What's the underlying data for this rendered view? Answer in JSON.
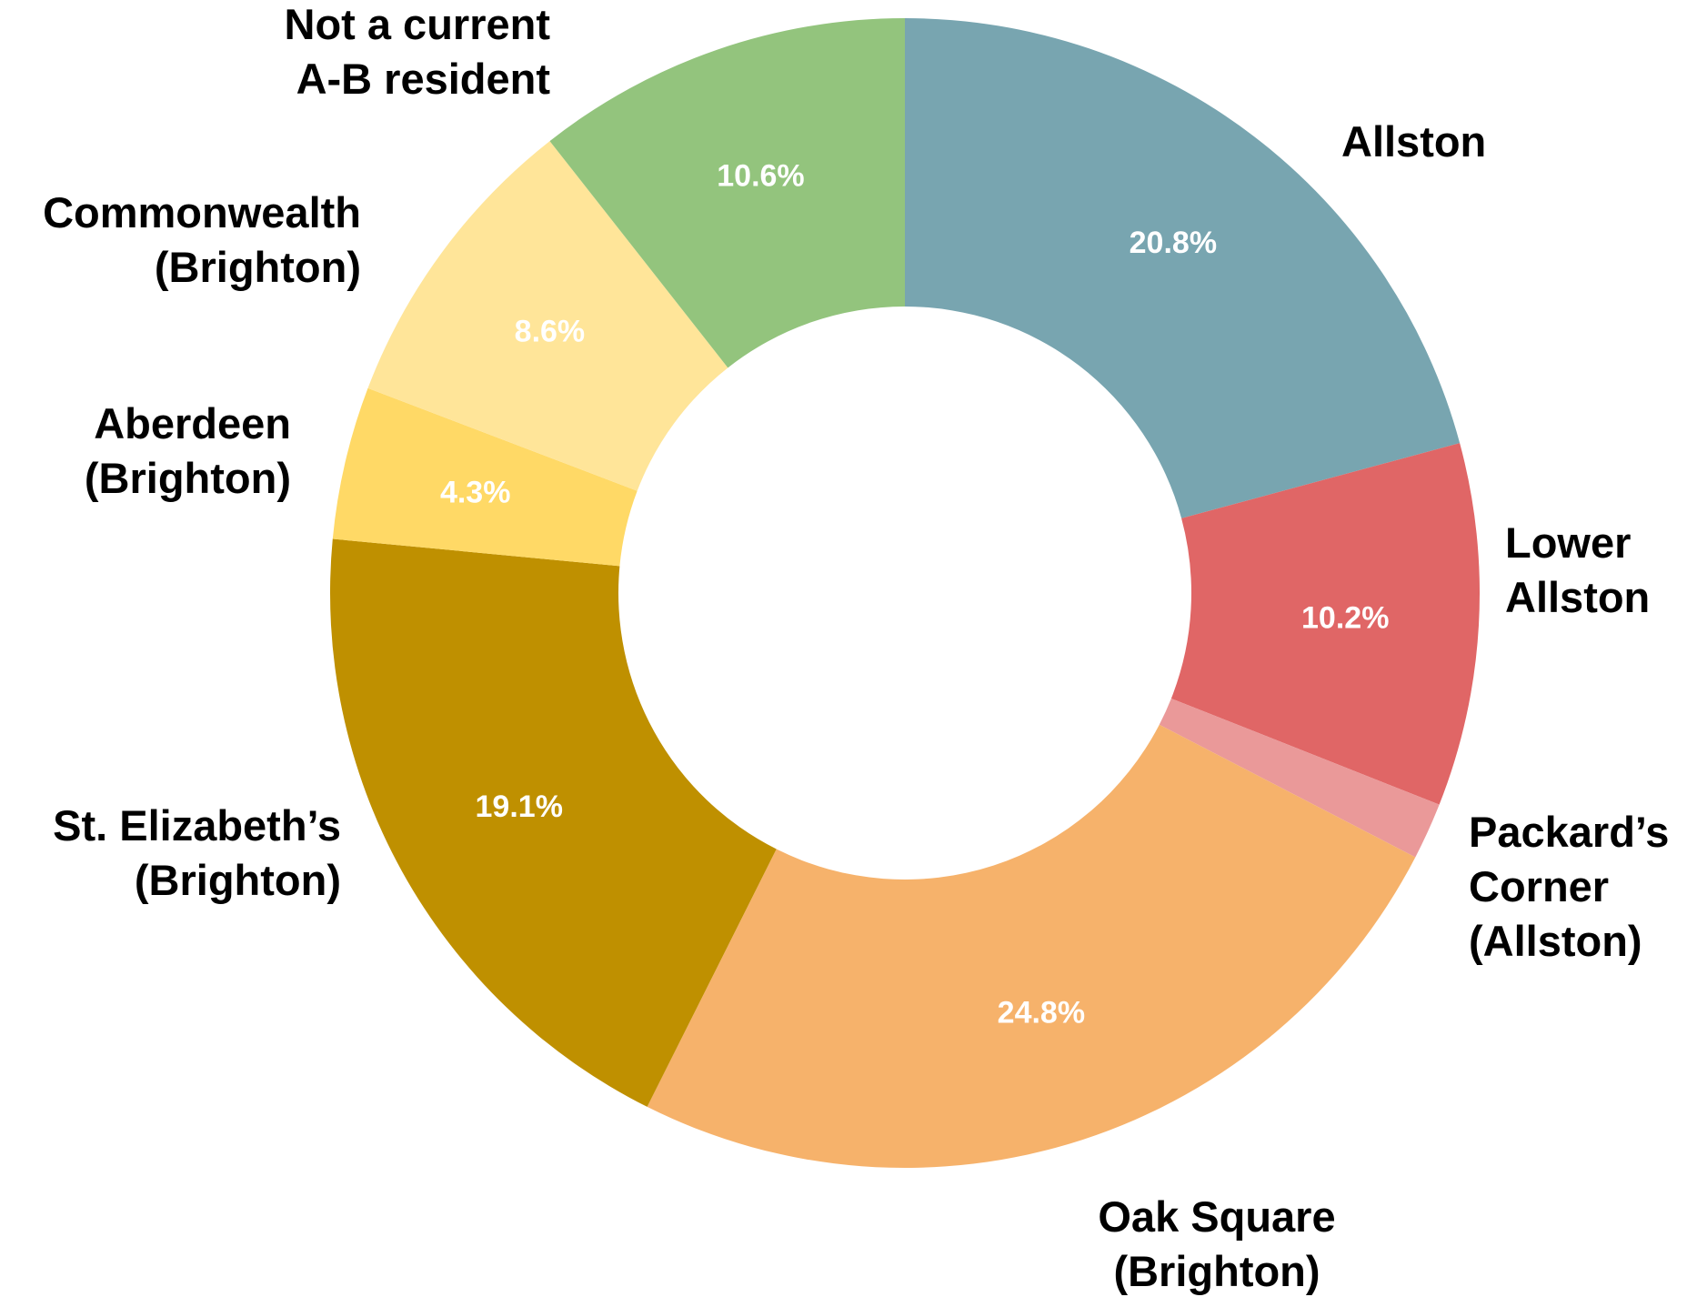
{
  "chart_data": {
    "type": "pie",
    "donut": true,
    "title": "",
    "data_label_color": "#ffffff",
    "slices": [
      {
        "label": "Allston",
        "value": 20.8,
        "value_label": "20.8%",
        "color": "#78a5b0"
      },
      {
        "label": "Lower Allston",
        "value": 10.2,
        "value_label": "10.2%",
        "color": "#e06666"
      },
      {
        "label": "Packard’s Corner (Allston)",
        "value": 1.6,
        "value_label": "",
        "color": "#ea9999"
      },
      {
        "label": "Oak Square (Brighton)",
        "value": 24.8,
        "value_label": "24.8%",
        "color": "#f6b26b"
      },
      {
        "label": "St. Elizabeth’s (Brighton)",
        "value": 19.1,
        "value_label": "19.1%",
        "color": "#bf9000"
      },
      {
        "label": "Aberdeen (Brighton)",
        "value": 4.3,
        "value_label": "4.3%",
        "color": "#ffd966"
      },
      {
        "label": "Commonwealth (Brighton)",
        "value": 8.6,
        "value_label": "8.6%",
        "color": "#ffe599"
      },
      {
        "label": "Not a current A-B resident",
        "value": 10.6,
        "value_label": "10.6%",
        "color": "#93c47d"
      }
    ],
    "category_label_lines": [
      [
        "Allston"
      ],
      [
        "Lower",
        "Allston"
      ],
      [
        "Packard’s",
        "Corner",
        "(Allston)"
      ],
      [
        "Oak Square",
        "(Brighton)"
      ],
      [
        "St. Elizabeth’s",
        "(Brighton)"
      ],
      [
        "Aberdeen",
        "(Brighton)"
      ],
      [
        "Commonwealth",
        "(Brighton)"
      ],
      [
        "Not a current",
        "A-B resident"
      ]
    ]
  }
}
